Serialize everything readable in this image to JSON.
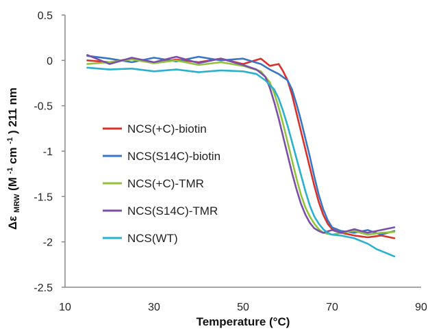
{
  "chart_data": {
    "type": "line",
    "xlabel": "Temperature (°C)",
    "ylabel_main": "Δε",
    "ylabel_sub": "MRW",
    "ylabel_unit_a": " (M",
    "ylabel_sup_a": "-1",
    "ylabel_unit_b": "cm",
    "ylabel_sup_b": "-1",
    "ylabel_unit_c": ") 211 nm",
    "xlim": [
      10,
      90
    ],
    "ylim": [
      -2.5,
      0.5
    ],
    "xticks": [
      "10",
      "30",
      "50",
      "70",
      "90"
    ],
    "yticks": [
      "0.5",
      "0",
      "-0.5",
      "-1",
      "-1.5",
      "-2",
      "-2.5"
    ],
    "grid": false,
    "legend_position": "center-left",
    "series": [
      {
        "name": "NCS(+C)-biotin",
        "color": "#d9302a",
        "x": [
          15,
          20,
          25,
          30,
          35,
          40,
          45,
          50,
          54,
          56,
          58,
          59,
          60,
          61,
          62,
          63,
          64,
          65,
          66,
          67,
          68,
          69,
          70,
          72,
          75,
          78,
          81,
          84
        ],
        "y": [
          0.0,
          -0.02,
          0.02,
          -0.03,
          0.01,
          -0.02,
          0.02,
          -0.04,
          0.02,
          -0.06,
          -0.04,
          -0.12,
          -0.22,
          -0.38,
          -0.58,
          -0.78,
          -0.98,
          -1.18,
          -1.38,
          -1.56,
          -1.7,
          -1.8,
          -1.86,
          -1.9,
          -1.93,
          -1.95,
          -1.93,
          -1.96
        ]
      },
      {
        "name": "NCS(S14C)-biotin",
        "color": "#3a75c4",
        "x": [
          15,
          20,
          25,
          30,
          35,
          40,
          45,
          50,
          54,
          56,
          58,
          60,
          61,
          62,
          63,
          64,
          65,
          66,
          67,
          68,
          69,
          70,
          72,
          75,
          78,
          81,
          84
        ],
        "y": [
          0.05,
          0.02,
          -0.02,
          0.03,
          -0.01,
          0.04,
          0.0,
          0.02,
          -0.04,
          -0.1,
          -0.15,
          -0.22,
          -0.32,
          -0.48,
          -0.66,
          -0.86,
          -1.06,
          -1.28,
          -1.48,
          -1.64,
          -1.76,
          -1.84,
          -1.88,
          -1.9,
          -1.87,
          -1.92,
          -1.88
        ]
      },
      {
        "name": "NCS(+C)-TMR",
        "color": "#92c13c",
        "x": [
          15,
          20,
          25,
          30,
          35,
          40,
          45,
          50,
          54,
          56,
          57,
          58,
          59,
          60,
          61,
          62,
          63,
          64,
          65,
          66,
          67,
          68,
          70,
          72,
          75,
          78,
          81,
          84
        ],
        "y": [
          -0.04,
          -0.02,
          0.01,
          -0.03,
          0.0,
          -0.05,
          -0.02,
          -0.06,
          -0.12,
          -0.24,
          -0.36,
          -0.52,
          -0.7,
          -0.9,
          -1.1,
          -1.3,
          -1.48,
          -1.62,
          -1.72,
          -1.8,
          -1.86,
          -1.9,
          -1.92,
          -1.9,
          -1.88,
          -1.92,
          -1.9,
          -1.89
        ]
      },
      {
        "name": "NCS(S14C)-TMR",
        "color": "#7a4fa8",
        "x": [
          15,
          20,
          25,
          30,
          35,
          40,
          45,
          50,
          53,
          55,
          56,
          57,
          58,
          59,
          60,
          61,
          62,
          63,
          64,
          65,
          66,
          67,
          68,
          70,
          72,
          75,
          78,
          81,
          84
        ],
        "y": [
          0.06,
          -0.04,
          0.03,
          -0.02,
          0.04,
          -0.03,
          0.02,
          -0.05,
          -0.1,
          -0.18,
          -0.3,
          -0.46,
          -0.64,
          -0.84,
          -1.04,
          -1.24,
          -1.42,
          -1.58,
          -1.7,
          -1.79,
          -1.85,
          -1.88,
          -1.9,
          -1.87,
          -1.9,
          -1.86,
          -1.9,
          -1.87,
          -1.84
        ]
      },
      {
        "name": "NCS(WT)",
        "color": "#2ab0cf",
        "x": [
          15,
          20,
          25,
          30,
          35,
          40,
          45,
          50,
          53,
          55,
          57,
          58,
          59,
          60,
          61,
          62,
          63,
          64,
          65,
          66,
          67,
          68,
          69,
          70,
          72,
          75,
          78,
          80,
          82,
          84
        ],
        "y": [
          -0.08,
          -0.1,
          -0.09,
          -0.12,
          -0.1,
          -0.13,
          -0.11,
          -0.12,
          -0.15,
          -0.22,
          -0.32,
          -0.42,
          -0.56,
          -0.72,
          -0.9,
          -1.08,
          -1.26,
          -1.44,
          -1.6,
          -1.72,
          -1.8,
          -1.86,
          -1.9,
          -1.92,
          -1.93,
          -1.96,
          -2.02,
          -2.08,
          -2.12,
          -2.16
        ]
      }
    ]
  }
}
